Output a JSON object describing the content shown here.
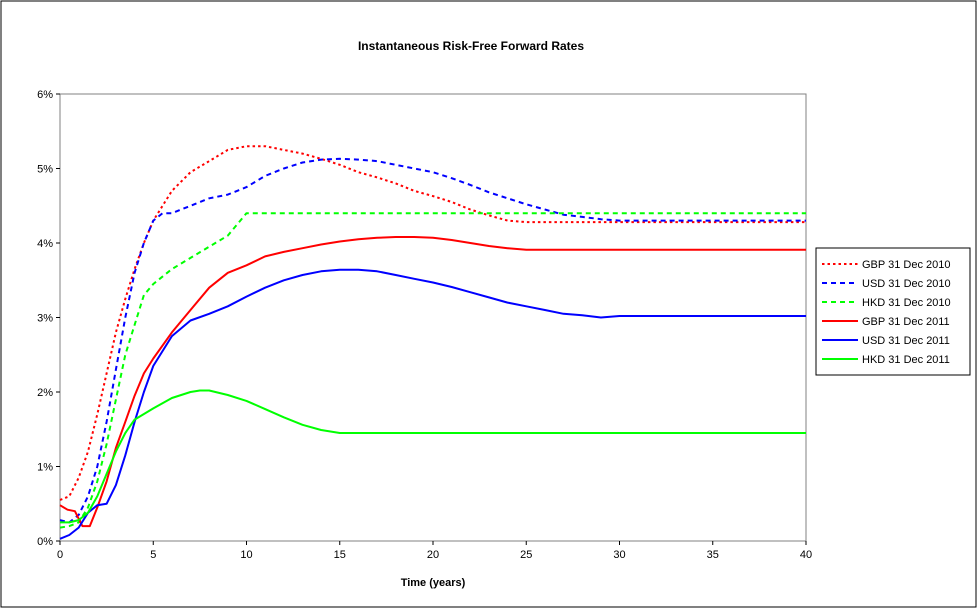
{
  "chart_data": {
    "type": "line",
    "title": "Instantaneous Risk-Free Forward Rates",
    "xlabel": "Time (years)",
    "ylabel": "",
    "xlim": [
      0,
      40
    ],
    "ylim": [
      0,
      0.06
    ],
    "xticks": [
      0,
      5,
      10,
      15,
      20,
      25,
      30,
      35,
      40
    ],
    "xtick_labels": [
      "0",
      "5",
      "10",
      "15",
      "20",
      "25",
      "30",
      "35",
      "40"
    ],
    "yticks": [
      0,
      0.01,
      0.02,
      0.03,
      0.04,
      0.05,
      0.06
    ],
    "ytick_labels": [
      "0%",
      "1%",
      "2%",
      "3%",
      "4%",
      "5%",
      "6%"
    ],
    "grid": false,
    "legend_position": "right",
    "series": [
      {
        "name": "GBP 31 Dec 2010",
        "color": "#ff0000",
        "dash": "dotted",
        "points": [
          [
            0,
            0.0055
          ],
          [
            0.5,
            0.006
          ],
          [
            1,
            0.0085
          ],
          [
            1.5,
            0.012
          ],
          [
            2,
            0.017
          ],
          [
            2.5,
            0.0225
          ],
          [
            3,
            0.028
          ],
          [
            3.5,
            0.0325
          ],
          [
            4,
            0.0365
          ],
          [
            4.5,
            0.04
          ],
          [
            5,
            0.043
          ],
          [
            6,
            0.047
          ],
          [
            7,
            0.0495
          ],
          [
            8,
            0.051
          ],
          [
            9,
            0.0525
          ],
          [
            10,
            0.053
          ],
          [
            11,
            0.053
          ],
          [
            12,
            0.0525
          ],
          [
            13,
            0.052
          ],
          [
            14,
            0.0513
          ],
          [
            15,
            0.0505
          ],
          [
            16,
            0.0495
          ],
          [
            17,
            0.0488
          ],
          [
            18,
            0.048
          ],
          [
            19,
            0.047
          ],
          [
            20,
            0.0463
          ],
          [
            21,
            0.0455
          ],
          [
            22,
            0.0445
          ],
          [
            23,
            0.0437
          ],
          [
            24,
            0.043
          ],
          [
            25,
            0.0428
          ],
          [
            27,
            0.0428
          ],
          [
            30,
            0.0428
          ],
          [
            35,
            0.0428
          ],
          [
            40,
            0.0428
          ]
        ]
      },
      {
        "name": "USD 31 Dec 2010",
        "color": "#0000ff",
        "dash": "dashed",
        "points": [
          [
            0,
            0.0028
          ],
          [
            0.5,
            0.0025
          ],
          [
            1,
            0.0035
          ],
          [
            1.5,
            0.006
          ],
          [
            2,
            0.01
          ],
          [
            2.5,
            0.016
          ],
          [
            3,
            0.023
          ],
          [
            3.5,
            0.03
          ],
          [
            4,
            0.036
          ],
          [
            4.5,
            0.04
          ],
          [
            5,
            0.043
          ],
          [
            5.5,
            0.044
          ],
          [
            6,
            0.044
          ],
          [
            7,
            0.045
          ],
          [
            8,
            0.046
          ],
          [
            9,
            0.0465
          ],
          [
            10,
            0.0475
          ],
          [
            11,
            0.049
          ],
          [
            12,
            0.05
          ],
          [
            13,
            0.0508
          ],
          [
            14,
            0.0512
          ],
          [
            15,
            0.0513
          ],
          [
            16,
            0.0512
          ],
          [
            17,
            0.051
          ],
          [
            18,
            0.0505
          ],
          [
            19,
            0.05
          ],
          [
            20,
            0.0495
          ],
          [
            21,
            0.0487
          ],
          [
            22,
            0.0478
          ],
          [
            23,
            0.0468
          ],
          [
            24,
            0.046
          ],
          [
            25,
            0.0452
          ],
          [
            26,
            0.0445
          ],
          [
            27,
            0.0438
          ],
          [
            28,
            0.0435
          ],
          [
            29,
            0.0432
          ],
          [
            30,
            0.043
          ],
          [
            35,
            0.043
          ],
          [
            40,
            0.043
          ]
        ]
      },
      {
        "name": "HKD 31 Dec 2010",
        "color": "#00ff00",
        "dash": "dashed",
        "points": [
          [
            0,
            0.0018
          ],
          [
            0.5,
            0.002
          ],
          [
            1,
            0.0025
          ],
          [
            1.5,
            0.0045
          ],
          [
            2,
            0.008
          ],
          [
            2.5,
            0.013
          ],
          [
            3,
            0.019
          ],
          [
            3.5,
            0.025
          ],
          [
            4,
            0.029
          ],
          [
            4.5,
            0.033
          ],
          [
            5,
            0.0345
          ],
          [
            6,
            0.0365
          ],
          [
            7,
            0.038
          ],
          [
            8,
            0.0395
          ],
          [
            9,
            0.041
          ],
          [
            10,
            0.044
          ],
          [
            12,
            0.044
          ],
          [
            15,
            0.044
          ],
          [
            20,
            0.044
          ],
          [
            25,
            0.044
          ],
          [
            30,
            0.044
          ],
          [
            35,
            0.044
          ],
          [
            40,
            0.044
          ]
        ]
      },
      {
        "name": "GBP 31 Dec 2011",
        "color": "#ff0000",
        "dash": "solid",
        "points": [
          [
            0,
            0.0048
          ],
          [
            0.4,
            0.0042
          ],
          [
            0.8,
            0.004
          ],
          [
            1.2,
            0.002
          ],
          [
            1.6,
            0.002
          ],
          [
            2,
            0.0045
          ],
          [
            2.5,
            0.008
          ],
          [
            3,
            0.0125
          ],
          [
            3.5,
            0.016
          ],
          [
            4,
            0.0195
          ],
          [
            4.5,
            0.0225
          ],
          [
            5,
            0.0245
          ],
          [
            6,
            0.028
          ],
          [
            7,
            0.031
          ],
          [
            8,
            0.034
          ],
          [
            9,
            0.036
          ],
          [
            10,
            0.037
          ],
          [
            11,
            0.0382
          ],
          [
            12,
            0.0388
          ],
          [
            13,
            0.0393
          ],
          [
            14,
            0.0398
          ],
          [
            15,
            0.0402
          ],
          [
            16,
            0.0405
          ],
          [
            17,
            0.0407
          ],
          [
            18,
            0.0408
          ],
          [
            19,
            0.0408
          ],
          [
            20,
            0.0407
          ],
          [
            21,
            0.0404
          ],
          [
            22,
            0.04
          ],
          [
            23,
            0.0396
          ],
          [
            24,
            0.0393
          ],
          [
            25,
            0.0391
          ],
          [
            30,
            0.0391
          ],
          [
            35,
            0.0391
          ],
          [
            40,
            0.0391
          ]
        ]
      },
      {
        "name": "USD 31 Dec 2011",
        "color": "#0000ff",
        "dash": "solid",
        "points": [
          [
            0,
            0.0003
          ],
          [
            0.5,
            0.0008
          ],
          [
            1,
            0.0018
          ],
          [
            1.5,
            0.0038
          ],
          [
            2,
            0.0048
          ],
          [
            2.5,
            0.005
          ],
          [
            3,
            0.0075
          ],
          [
            3.5,
            0.0115
          ],
          [
            4,
            0.016
          ],
          [
            4.5,
            0.02
          ],
          [
            5,
            0.0235
          ],
          [
            6,
            0.0275
          ],
          [
            7,
            0.0296
          ],
          [
            8,
            0.0305
          ],
          [
            9,
            0.0315
          ],
          [
            10,
            0.0328
          ],
          [
            11,
            0.034
          ],
          [
            12,
            0.035
          ],
          [
            13,
            0.0357
          ],
          [
            14,
            0.0362
          ],
          [
            15,
            0.0364
          ],
          [
            16,
            0.0364
          ],
          [
            17,
            0.0362
          ],
          [
            18,
            0.0357
          ],
          [
            19,
            0.0352
          ],
          [
            20,
            0.0347
          ],
          [
            21,
            0.0341
          ],
          [
            22,
            0.0334
          ],
          [
            23,
            0.0327
          ],
          [
            24,
            0.032
          ],
          [
            25,
            0.0315
          ],
          [
            26,
            0.031
          ],
          [
            27,
            0.0305
          ],
          [
            28,
            0.0303
          ],
          [
            29,
            0.03
          ],
          [
            30,
            0.0302
          ],
          [
            35,
            0.0302
          ],
          [
            40,
            0.0302
          ]
        ]
      },
      {
        "name": "HKD 31 Dec 2011",
        "color": "#00ff00",
        "dash": "solid",
        "points": [
          [
            0,
            0.0025
          ],
          [
            0.5,
            0.0025
          ],
          [
            1,
            0.0028
          ],
          [
            1.5,
            0.0038
          ],
          [
            2,
            0.006
          ],
          [
            2.5,
            0.009
          ],
          [
            3,
            0.012
          ],
          [
            3.5,
            0.0145
          ],
          [
            4,
            0.0163
          ],
          [
            5,
            0.0178
          ],
          [
            6,
            0.0192
          ],
          [
            7,
            0.02
          ],
          [
            7.5,
            0.0202
          ],
          [
            8,
            0.0202
          ],
          [
            9,
            0.0196
          ],
          [
            10,
            0.0188
          ],
          [
            11,
            0.0177
          ],
          [
            12,
            0.0166
          ],
          [
            13,
            0.0156
          ],
          [
            14,
            0.0149
          ],
          [
            15,
            0.0145
          ],
          [
            20,
            0.0145
          ],
          [
            25,
            0.0145
          ],
          [
            30,
            0.0145
          ],
          [
            35,
            0.0145
          ],
          [
            40,
            0.0145
          ]
        ]
      }
    ]
  }
}
